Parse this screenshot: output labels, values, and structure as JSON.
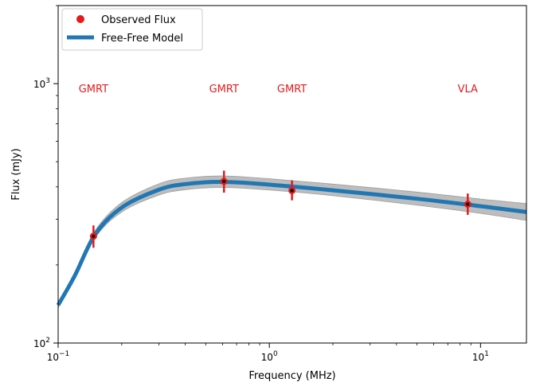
{
  "chart_data": {
    "type": "line",
    "xlabel": "Frequency (MHz)",
    "ylabel": "Flux (mJy)",
    "x_scale": "log",
    "y_scale": "log",
    "xlim": [
      0.1,
      16.5
    ],
    "ylim": [
      100,
      2000
    ],
    "x_ticks": [
      {
        "value": 0.1,
        "base": "10",
        "exp": "−1"
      },
      {
        "value": 1,
        "base": "10",
        "exp": "0"
      },
      {
        "value": 10,
        "base": "10",
        "exp": "1"
      }
    ],
    "y_ticks": [
      {
        "value": 100,
        "base": "10",
        "exp": "2"
      },
      {
        "value": 1000,
        "base": "10",
        "exp": "3"
      }
    ],
    "grid": false,
    "legend": {
      "placement": "top-left",
      "entries": [
        "Observed Flux",
        "Free-Free Model"
      ]
    },
    "series": [
      {
        "name": "Observed Flux",
        "kind": "scatter-errorbar",
        "color": "#e41a1c",
        "points": [
          {
            "x": 0.147,
            "y": 258,
            "y_low": 233,
            "y_high": 284
          },
          {
            "x": 0.61,
            "y": 420,
            "y_low": 380,
            "y_high": 462
          },
          {
            "x": 1.28,
            "y": 387,
            "y_low": 355,
            "y_high": 424
          },
          {
            "x": 8.7,
            "y": 343,
            "y_low": 312,
            "y_high": 377
          }
        ]
      },
      {
        "name": "Free-Free Model",
        "kind": "line",
        "color": "#1f77b4",
        "band_color": "#bdbdbd",
        "points": [
          {
            "x": 0.1,
            "y": 140,
            "y_low": 137,
            "y_high": 143
          },
          {
            "x": 0.12,
            "y": 182,
            "y_low": 177,
            "y_high": 188
          },
          {
            "x": 0.15,
            "y": 263,
            "y_low": 255,
            "y_high": 272
          },
          {
            "x": 0.2,
            "y": 333,
            "y_low": 320,
            "y_high": 348
          },
          {
            "x": 0.3,
            "y": 390,
            "y_low": 372,
            "y_high": 411
          },
          {
            "x": 0.4,
            "y": 410,
            "y_low": 390,
            "y_high": 432
          },
          {
            "x": 0.6,
            "y": 418,
            "y_low": 398,
            "y_high": 441
          },
          {
            "x": 1.0,
            "y": 408,
            "y_low": 389,
            "y_high": 430
          },
          {
            "x": 2.0,
            "y": 388,
            "y_low": 370,
            "y_high": 410
          },
          {
            "x": 5.0,
            "y": 360,
            "y_low": 340,
            "y_high": 382
          },
          {
            "x": 10.0,
            "y": 337,
            "y_low": 316,
            "y_high": 359
          },
          {
            "x": 16.5,
            "y": 320,
            "y_low": 297,
            "y_high": 345
          }
        ]
      }
    ],
    "annotations": [
      {
        "text": "GMRT",
        "x": 0.147,
        "y": 925
      },
      {
        "text": "GMRT",
        "x": 0.61,
        "y": 925
      },
      {
        "text": "GMRT",
        "x": 1.28,
        "y": 925
      },
      {
        "text": "VLA",
        "x": 8.7,
        "y": 925
      }
    ],
    "annotation_color": "#e41a1c",
    "line_color": "#1f77b4",
    "band_color": "#bdbdbd"
  }
}
